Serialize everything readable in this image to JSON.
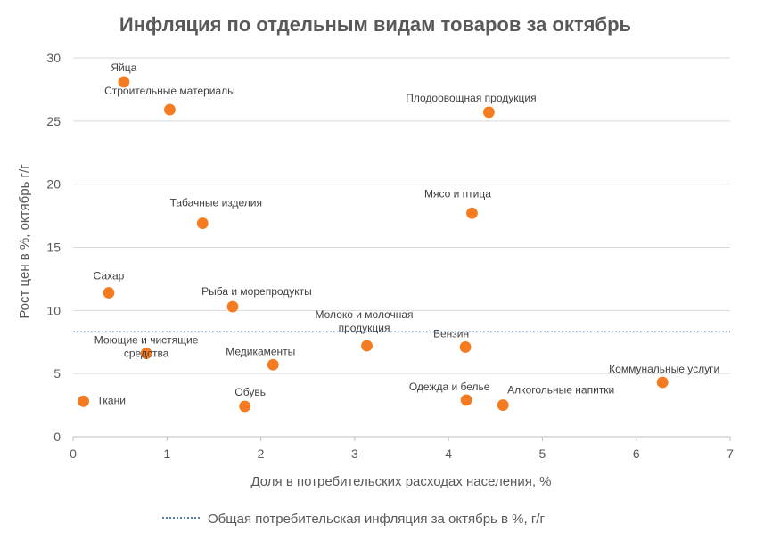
{
  "chart_data": {
    "type": "scatter",
    "title": "Инфляция по отдельным видам товаров за октябрь",
    "xlabel": "Доля в потребительских расходах населения, %",
    "ylabel": "Рост цен в %, октябрь г/г",
    "xlim": [
      0,
      7
    ],
    "ylim": [
      0,
      30
    ],
    "xticks": [
      "0",
      "1",
      "2",
      "3",
      "4",
      "5",
      "6",
      "7"
    ],
    "yticks": [
      "0",
      "5",
      "10",
      "15",
      "20",
      "25",
      "30"
    ],
    "grid": "horizontal",
    "marker_color": "#F47B20",
    "points": [
      {
        "label": "Яйца",
        "x": 0.54,
        "y": 28.1
      },
      {
        "label": "Строительные материалы",
        "x": 1.03,
        "y": 25.9
      },
      {
        "label": "Плодоовощная продукция",
        "x": 4.43,
        "y": 25.7
      },
      {
        "label": "Табачные изделия",
        "x": 1.38,
        "y": 16.9
      },
      {
        "label": "Мясо и птица",
        "x": 4.25,
        "y": 17.7
      },
      {
        "label": "Сахар",
        "x": 0.38,
        "y": 11.4
      },
      {
        "label": "Рыба и морепродукты",
        "x": 1.7,
        "y": 10.3
      },
      {
        "label": "Моющие и чистящие средства",
        "x": 0.78,
        "y": 6.6
      },
      {
        "label": "Молоко и молочная продукция",
        "x": 3.13,
        "y": 7.2
      },
      {
        "label": "Бензин",
        "x": 4.18,
        "y": 7.1
      },
      {
        "label": "Медикаменты",
        "x": 2.13,
        "y": 5.7
      },
      {
        "label": "Коммунальные услуги",
        "x": 6.28,
        "y": 4.3
      },
      {
        "label": "Ткани",
        "x": 0.11,
        "y": 2.8
      },
      {
        "label": "Обувь",
        "x": 1.83,
        "y": 2.4
      },
      {
        "label": "Одежда и белье",
        "x": 4.19,
        "y": 2.9
      },
      {
        "label": "Алкогольные напитки",
        "x": 4.58,
        "y": 2.5
      }
    ],
    "reference_line": {
      "name": "Общая потребительская инфляция за октябрь в %, г/г",
      "y": 8.3,
      "color": "#5B7FA6",
      "style": "dotted"
    },
    "legend_position": "bottom"
  }
}
